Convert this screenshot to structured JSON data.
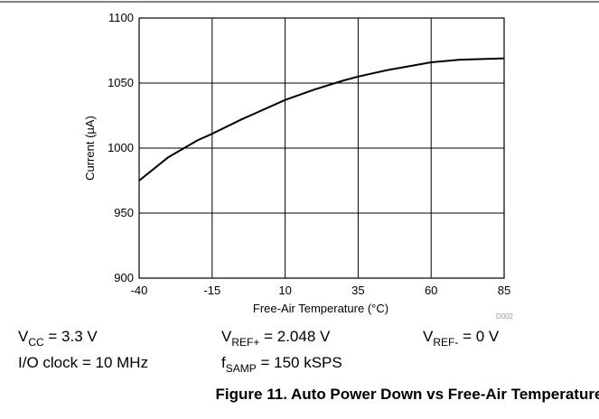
{
  "chart_data": {
    "type": "line",
    "x_label": "Free-Air Temperature (°C)",
    "y_label": "Current (µA)",
    "code": "D002",
    "caption": "Figure 11. Auto Power Down vs Free-Air Temperature",
    "x": [
      -40,
      -30,
      -20,
      -15,
      -5,
      0,
      10,
      20,
      30,
      35,
      45,
      50,
      60,
      70,
      85
    ],
    "series": [
      {
        "color": "#000000",
        "values": [
          975,
          993,
          1006,
          1011,
          1022,
          1027,
          1037,
          1045,
          1052,
          1055,
          1060,
          1062,
          1066,
          1068,
          1069
        ]
      }
    ],
    "xlim": [
      -40,
      85
    ],
    "xticks": [
      -40,
      -15,
      10,
      35,
      60,
      85
    ],
    "ylim": [
      900,
      1100
    ],
    "yticks": [
      900,
      950,
      1000,
      1050,
      1100
    ],
    "grid": true,
    "annotations": [
      {
        "main": "V",
        "sub": "CC",
        "rest": " = 3.3 V"
      },
      {
        "main": "V",
        "sub": "REF+",
        "rest": " = 2.048 V"
      },
      {
        "main": "V",
        "sub": "REF-",
        "rest": " = 0 V"
      },
      {
        "main": "I/O clock = 10 MHz"
      },
      {
        "main": "f",
        "sub": "SAMP",
        "rest": " = 150 kSPS"
      }
    ]
  }
}
